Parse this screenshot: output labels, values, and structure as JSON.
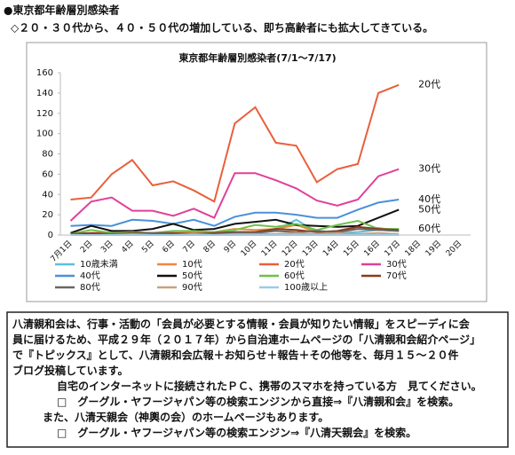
{
  "header": {
    "title": "●東京都年齢層別感染者",
    "subtitle": "◇２０・３０代から、４０・５０代の増加している、即ち高齢者にも拡大してきている。"
  },
  "chart_data": {
    "type": "line",
    "title": "東京都年齢層別感染者(7/1～7/17)",
    "categories": [
      "7月1日",
      "2日",
      "3日",
      "4日",
      "5日",
      "6日",
      "7日",
      "8日",
      "9日",
      "10日",
      "11日",
      "12日",
      "13日",
      "14日",
      "15日",
      "16日",
      "17日",
      "18日",
      "19日",
      "20日"
    ],
    "ylim": [
      0,
      160
    ],
    "yticks": [
      0,
      20,
      40,
      60,
      80,
      100,
      120,
      140,
      160
    ],
    "grid": false,
    "legend": "bottom",
    "series": [
      {
        "name": "10歳未満",
        "color": "#5bc0de",
        "values": [
          1,
          1,
          2,
          1,
          1,
          2,
          2,
          1,
          2,
          3,
          5,
          15,
          3,
          2,
          3,
          5,
          4,
          null,
          null,
          null
        ]
      },
      {
        "name": "10代",
        "color": "#f0883e",
        "values": [
          1,
          2,
          3,
          3,
          1,
          2,
          3,
          3,
          6,
          5,
          6,
          10,
          3,
          3,
          6,
          7,
          4,
          null,
          null,
          null
        ]
      },
      {
        "name": "20代",
        "color": "#e8603c",
        "end_label": true,
        "values": [
          35,
          37,
          60,
          74,
          49,
          53,
          44,
          33,
          110,
          126,
          91,
          88,
          52,
          65,
          70,
          140,
          148,
          null,
          null,
          null
        ]
      },
      {
        "name": "30代",
        "color": "#e0409a",
        "end_label": true,
        "values": [
          14,
          33,
          37,
          24,
          24,
          19,
          26,
          17,
          61,
          61,
          54,
          46,
          34,
          29,
          35,
          58,
          65,
          null,
          null,
          null
        ]
      },
      {
        "name": "40代",
        "color": "#4a90d9",
        "end_label": true,
        "values": [
          9,
          10,
          9,
          15,
          14,
          11,
          15,
          9,
          18,
          22,
          22,
          20,
          17,
          17,
          25,
          32,
          35,
          null,
          null,
          null
        ]
      },
      {
        "name": "50代",
        "color": "#111111",
        "end_label": true,
        "values": [
          2,
          9,
          4,
          4,
          6,
          11,
          5,
          6,
          11,
          13,
          15,
          10,
          9,
          8,
          9,
          17,
          25,
          null,
          null,
          null
        ]
      },
      {
        "name": "60代",
        "color": "#6cc24a",
        "end_label": true,
        "values": [
          1,
          5,
          2,
          3,
          2,
          4,
          4,
          3,
          5,
          10,
          8,
          11,
          5,
          10,
          14,
          6,
          6,
          null,
          null,
          null
        ]
      },
      {
        "name": "70代",
        "color": "#8b3a1a",
        "values": [
          1,
          2,
          1,
          2,
          2,
          2,
          1,
          2,
          3,
          3,
          6,
          5,
          3,
          4,
          8,
          6,
          5,
          null,
          null,
          null
        ]
      },
      {
        "name": "80代",
        "color": "#666666",
        "values": [
          1,
          0,
          1,
          1,
          2,
          1,
          1,
          1,
          2,
          2,
          4,
          3,
          4,
          3,
          6,
          5,
          4,
          null,
          null,
          null
        ]
      },
      {
        "name": "90代",
        "color": "#c8a27a",
        "values": [
          0,
          0,
          0,
          1,
          0,
          0,
          1,
          0,
          1,
          1,
          1,
          2,
          1,
          2,
          1,
          2,
          1,
          null,
          null,
          null
        ]
      },
      {
        "name": "100歳以上",
        "color": "#9ec9e8",
        "values": [
          0,
          0,
          0,
          0,
          0,
          0,
          0,
          0,
          0,
          0,
          0,
          0,
          0,
          0,
          0,
          0,
          0,
          null,
          null,
          null
        ]
      }
    ]
  },
  "notice": {
    "lines": [
      "八清親和会は、行事・活動の「会員が必要とする情報・会員が知りたい情報」をスピーディに会",
      "員に届けるため、平成２９年（２０１７年）から自治連ホームページの「八清親和会紹介ページ」",
      "で『トピックス』として、八清親和会広報＋お知らせ＋報告＋その他等を、毎月１５～２０件",
      "ブログ投稿しています。",
      "自宅のインターネットに接続されたＰＣ、携帯のスマホを持っている方　見てください。",
      "□　グーグル・ヤフージャパン等の検索エンジンから直接⇒『八清親和会』を検索。",
      "また、八清天親会（神輿の会）のホームページもあります。",
      "□　グーグル・ヤフージャパン等の検索エンジン⇒『八清天親会』を検索。"
    ]
  }
}
